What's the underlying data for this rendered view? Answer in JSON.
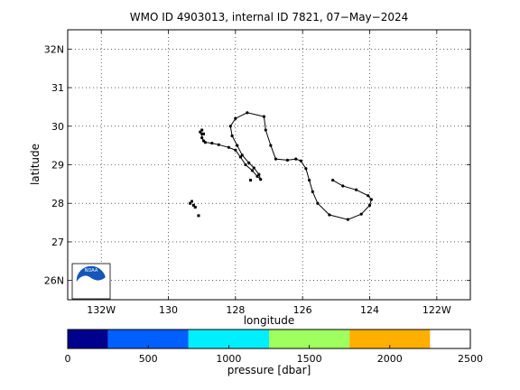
{
  "chart_data": [
    {
      "type": "scatter",
      "title": "WMO ID 4903013, internal ID 7821, 07−May−2024",
      "xlabel": "longitude",
      "ylabel": "latitude",
      "xlim": [
        -133,
        -121
      ],
      "ylim": [
        25.5,
        32.5
      ],
      "grid": true,
      "logo": "NOAA",
      "x_ticks": [
        {
          "value": -132,
          "label": "132W"
        },
        {
          "value": -130,
          "label": "130"
        },
        {
          "value": -128,
          "label": "128"
        },
        {
          "value": -126,
          "label": "126"
        },
        {
          "value": -124,
          "label": "124"
        },
        {
          "value": -122,
          "label": "122W"
        }
      ],
      "y_ticks": [
        {
          "value": 26,
          "label": "26N"
        },
        {
          "value": 27,
          "label": "27"
        },
        {
          "value": 28,
          "label": "28"
        },
        {
          "value": 29,
          "label": "29"
        },
        {
          "value": 30,
          "label": "30"
        },
        {
          "value": 31,
          "label": "31"
        },
        {
          "value": 32,
          "label": "32N"
        }
      ],
      "track": {
        "lon": [
          -129.0,
          -129.0,
          -128.95,
          -128.9,
          -128.7,
          -128.5,
          -128.2,
          -128.0,
          -127.85,
          -127.7,
          -127.5,
          -127.35,
          -127.25,
          -127.3,
          -127.45,
          -127.6,
          -127.8,
          -127.95,
          -128.1,
          -128.15,
          -128.0,
          -127.65,
          -127.15,
          -127.1,
          -126.95,
          -126.8,
          -126.45,
          -126.2,
          -126.05,
          -125.9,
          -125.8,
          -125.7,
          -125.55,
          -125.2,
          -124.65,
          -124.25,
          -124.0,
          -123.95,
          -124.05,
          -124.4,
          -124.8,
          -125.1
        ],
        "lat": [
          29.8,
          29.7,
          29.62,
          29.58,
          29.56,
          29.52,
          29.45,
          29.38,
          29.2,
          29.0,
          28.85,
          28.7,
          28.62,
          28.75,
          28.92,
          29.05,
          29.25,
          29.5,
          29.75,
          30.0,
          30.2,
          30.35,
          30.25,
          29.9,
          29.5,
          29.15,
          29.12,
          29.15,
          29.1,
          28.9,
          28.6,
          28.3,
          28.0,
          27.7,
          27.58,
          27.72,
          27.95,
          28.1,
          28.2,
          28.35,
          28.45,
          28.6
        ]
      },
      "scattered_points": {
        "lon": [
          -129.05,
          -129.0,
          -128.95,
          -129.3,
          -129.25,
          -129.35,
          -129.2,
          -129.1,
          -127.55
        ],
        "lat": [
          29.85,
          29.9,
          29.8,
          28.05,
          27.95,
          28.0,
          27.9,
          27.68,
          28.6
        ]
      }
    },
    {
      "type": "colorbar",
      "xlabel": "pressure [dbar]",
      "ticks": [
        0,
        500,
        1000,
        1500,
        2000,
        2500
      ],
      "bands": [
        {
          "from": 0,
          "to": 250,
          "color": "#00008f"
        },
        {
          "from": 250,
          "to": 750,
          "color": "#005fff"
        },
        {
          "from": 750,
          "to": 1250,
          "color": "#00efff"
        },
        {
          "from": 1250,
          "to": 1750,
          "color": "#9fff5f"
        },
        {
          "from": 1750,
          "to": 2250,
          "color": "#ffaf00"
        },
        {
          "from": 2250,
          "to": 2500,
          "color": "#ffffff"
        }
      ]
    }
  ]
}
